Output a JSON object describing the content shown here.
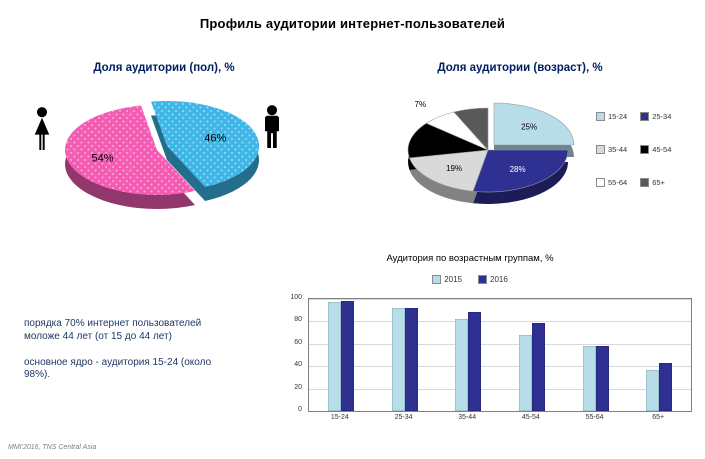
{
  "page": {
    "title": "Профиль аудитории  интернет-пользователей",
    "footer": "MMI'2016, TNS Central Asia"
  },
  "notes": {
    "para1": "порядка 70% интернет пользователей моложе 44 лет (от 15 до 44 лет)",
    "para2": "основное ядро - аудитория 15-24 (около 98%)."
  },
  "chart_data": [
    {
      "id": "gender-pie",
      "type": "pie",
      "title": "Доля аудитории (пол), %",
      "categories": [
        "мужчины",
        "женщины"
      ],
      "values": [
        46,
        54
      ],
      "colors": [
        "#3EB7E8",
        "#F45CB3"
      ],
      "visible_labels": [
        "46%",
        "54%"
      ]
    },
    {
      "id": "age-pie",
      "type": "pie",
      "title": "Доля аудитории (возраст), %",
      "categories": [
        "15-24",
        "25-34",
        "35-44",
        "45-54",
        "55-64",
        "65+"
      ],
      "values": [
        25,
        28,
        19,
        14,
        7,
        7
      ],
      "colors": [
        "#B7DEE8",
        "#2E3192",
        "#D9D9D9",
        "#000000",
        "#FFFFFF",
        "#595959"
      ],
      "visible_labels": [
        "25%",
        "28%",
        "19%",
        "",
        "7%",
        ""
      ],
      "legend_position": "right"
    },
    {
      "id": "age-bars",
      "type": "bar",
      "title": "Аудитория по возрастным группам, %",
      "categories": [
        "15-24",
        "25-34",
        "35-44",
        "45-54",
        "55-64",
        "65+"
      ],
      "series": [
        {
          "name": "2015",
          "color": "#B7DEE8",
          "values": [
            97,
            92,
            82,
            68,
            58,
            37
          ]
        },
        {
          "name": "2016",
          "color": "#2E3192",
          "values": [
            98,
            92,
            88,
            79,
            58,
            43
          ]
        }
      ],
      "ylim": [
        0,
        100
      ],
      "yticks": [
        0,
        20,
        40,
        60,
        80,
        100
      ],
      "grid": true,
      "legend_position": "top"
    }
  ]
}
